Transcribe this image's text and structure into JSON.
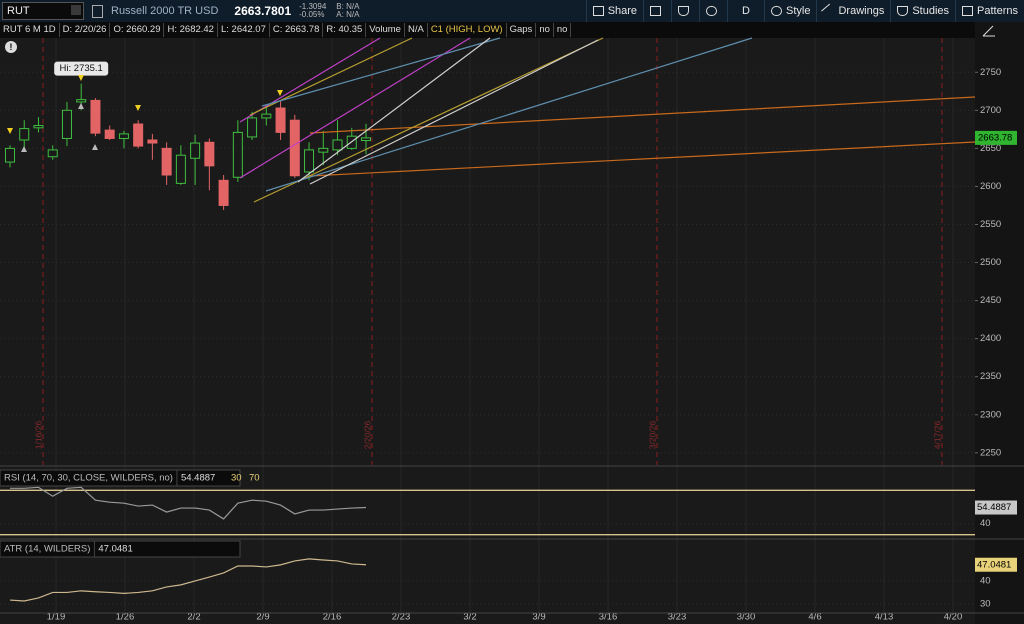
{
  "toolbar": {
    "symbol": "RUT",
    "description": "Russell 2000 TR USD",
    "last": "2663.7801",
    "change": "-1.3094",
    "change_pct": "-0.05%",
    "bid": "B: N/A",
    "ask": "A: N/A",
    "buttons": [
      "Share",
      "D",
      "Style",
      "Drawings",
      "Studies",
      "Patterns"
    ]
  },
  "info_bar": {
    "items": [
      "RUT 6 M 1D",
      "D: 2/20/26",
      "O: 2660.29",
      "H: 2682.42",
      "L: 2642.07",
      "C: 2663.78",
      "R: 40.35",
      "Volume",
      "N/A",
      "C1 (HIGH, LOW)",
      "Gaps",
      "no",
      "no"
    ]
  },
  "price_chart": {
    "type": "candlestick",
    "open": [
      2632,
      2661,
      2677,
      2639,
      2663,
      2711,
      2713,
      2674,
      2663,
      2682,
      2661,
      2650,
      2604,
      2637,
      2658,
      2608,
      2612,
      2665,
      2690,
      2703,
      2687,
      2619,
      2645,
      2648,
      2650,
      2660.29
    ],
    "high": [
      2654,
      2687,
      2691,
      2654,
      2711,
      2735.1,
      2716,
      2680,
      2673,
      2687,
      2669,
      2658,
      2654,
      2668,
      2663,
      2615,
      2687,
      2698,
      2705,
      2713,
      2694,
      2658,
      2673,
      2687,
      2677,
      2682.42
    ],
    "low": [
      2625,
      2648,
      2671,
      2635,
      2653,
      2700,
      2666,
      2661,
      2650,
      2650,
      2635,
      2602,
      2602,
      2602,
      2595,
      2569,
      2606,
      2661,
      2680,
      2661,
      2611,
      2608,
      2628,
      2641,
      2648,
      2642.07
    ],
    "close": [
      2650,
      2676,
      2680,
      2648,
      2700,
      2714,
      2670,
      2663,
      2669,
      2653,
      2657,
      2615,
      2641,
      2657,
      2627,
      2575,
      2671,
      2690,
      2695,
      2671,
      2614,
      2648,
      2650,
      2661,
      2666,
      2663.78
    ],
    "ylim": [
      2234,
      2795
    ],
    "yticks": [
      2250,
      2300,
      2350,
      2400,
      2450,
      2500,
      2550,
      2600,
      2650,
      2700,
      2750
    ],
    "last_price_label": "2663.78",
    "high_annotation": "Hi: 2735.1",
    "alert": "!",
    "event_lines": [
      "1/16/26",
      "2/20/26",
      "3/20/26",
      "4/17/26"
    ]
  },
  "rsi": {
    "type": "line",
    "title": "RSI (14, 70, 30, CLOSE, WILDERS, no)",
    "color": "#9a9a9a",
    "values": [
      71.8,
      71.8,
      72.7,
      64.7,
      71.8,
      72.7,
      61.1,
      59.3,
      58.4,
      55.8,
      56.7,
      50.4,
      54,
      54,
      52.2,
      44.2,
      58.4,
      61.1,
      60.2,
      56.7,
      48.7,
      52.2,
      52.2,
      53.1,
      54,
      54.4887
    ],
    "last_label": "54.4887",
    "levels": [
      30,
      70
    ],
    "ylim": [
      27,
      73
    ],
    "yticks": [
      40
    ]
  },
  "atr": {
    "type": "line",
    "title": "ATR (14, WILDERS)",
    "color": "#cdb88e",
    "values": [
      31.7,
      31.3,
      32.6,
      35,
      35,
      35.7,
      35.3,
      35,
      34.6,
      35,
      35.7,
      37.4,
      38.3,
      40,
      41.7,
      43.5,
      46.5,
      46.5,
      46.1,
      47,
      48.7,
      49.6,
      49.1,
      48.7,
      47.4,
      47.0481
    ],
    "last_label": "47.0481",
    "ylim": [
      26.5,
      56.5
    ],
    "yticks": [
      30,
      40
    ]
  },
  "x_axis_labels": [
    "1/19",
    "1/26",
    "2/2",
    "2/9",
    "2/16",
    "2/23",
    "3/2",
    "3/9",
    "3/16",
    "3/23",
    "3/30",
    "4/6",
    "4/13",
    "4/20"
  ]
}
